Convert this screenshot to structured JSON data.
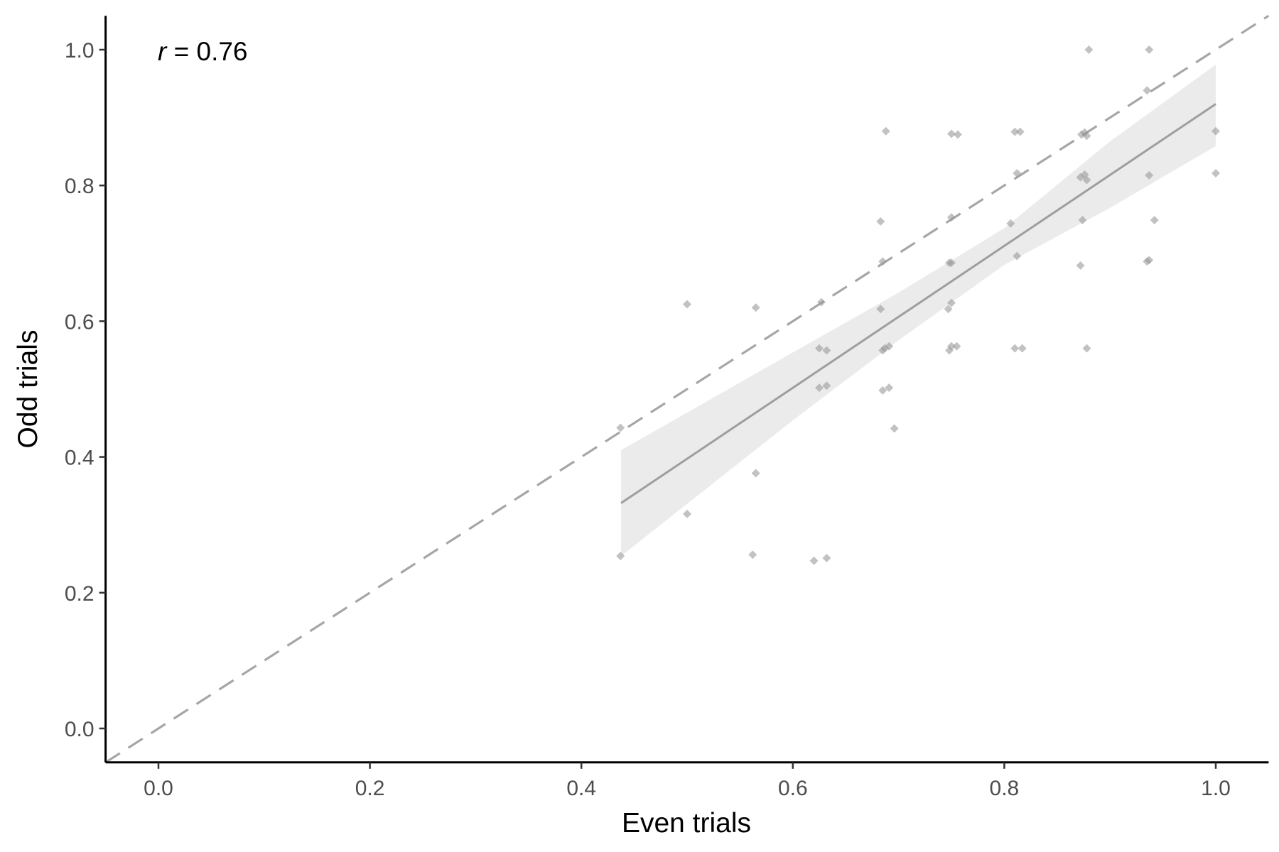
{
  "chart_data": {
    "type": "scatter",
    "xlabel": "Even trials",
    "ylabel": "Odd trials",
    "xlim": [
      -0.05,
      1.05
    ],
    "ylim": [
      -0.05,
      1.05
    ],
    "x_ticks": [
      "0.0",
      "0.2",
      "0.4",
      "0.6",
      "0.8",
      "1.0"
    ],
    "y_ticks": [
      "0.0",
      "0.2",
      "0.4",
      "0.6",
      "0.8",
      "1.0"
    ],
    "annotation": {
      "label": "r",
      "text": " = 0.76",
      "value": 0.76
    },
    "grid": false,
    "reference_line": {
      "slope": 1,
      "intercept": 0,
      "style": "dashed"
    },
    "regression": {
      "x_range": [
        0.4375,
        1.0
      ],
      "y_range": [
        0.332,
        0.92
      ],
      "band": [
        {
          "x": 0.4375,
          "lo": 0.254,
          "hi": 0.41
        },
        {
          "x": 0.6,
          "lo": 0.454,
          "hi": 0.554
        },
        {
          "x": 0.7,
          "lo": 0.572,
          "hi": 0.642
        },
        {
          "x": 0.8,
          "lo": 0.683,
          "hi": 0.737
        },
        {
          "x": 0.9,
          "lo": 0.767,
          "hi": 0.865
        },
        {
          "x": 1.0,
          "lo": 0.858,
          "hi": 0.978
        }
      ]
    },
    "points": [
      {
        "x": 0.437,
        "y": 0.443
      },
      {
        "x": 0.437,
        "y": 0.254
      },
      {
        "x": 0.5,
        "y": 0.625
      },
      {
        "x": 0.5,
        "y": 0.316
      },
      {
        "x": 0.565,
        "y": 0.62
      },
      {
        "x": 0.565,
        "y": 0.376
      },
      {
        "x": 0.562,
        "y": 0.256
      },
      {
        "x": 0.62,
        "y": 0.247
      },
      {
        "x": 0.632,
        "y": 0.251
      },
      {
        "x": 0.627,
        "y": 0.628
      },
      {
        "x": 0.625,
        "y": 0.56
      },
      {
        "x": 0.632,
        "y": 0.557
      },
      {
        "x": 0.625,
        "y": 0.502
      },
      {
        "x": 0.632,
        "y": 0.505
      },
      {
        "x": 0.683,
        "y": 0.747
      },
      {
        "x": 0.685,
        "y": 0.688
      },
      {
        "x": 0.683,
        "y": 0.618
      },
      {
        "x": 0.687,
        "y": 0.56
      },
      {
        "x": 0.685,
        "y": 0.557
      },
      {
        "x": 0.691,
        "y": 0.563
      },
      {
        "x": 0.685,
        "y": 0.498
      },
      {
        "x": 0.691,
        "y": 0.502
      },
      {
        "x": 0.696,
        "y": 0.442
      },
      {
        "x": 0.688,
        "y": 0.88
      },
      {
        "x": 0.75,
        "y": 0.876
      },
      {
        "x": 0.756,
        "y": 0.875
      },
      {
        "x": 0.75,
        "y": 0.753
      },
      {
        "x": 0.75,
        "y": 0.686
      },
      {
        "x": 0.748,
        "y": 0.686
      },
      {
        "x": 0.747,
        "y": 0.618
      },
      {
        "x": 0.75,
        "y": 0.627
      },
      {
        "x": 0.75,
        "y": 0.563
      },
      {
        "x": 0.748,
        "y": 0.557
      },
      {
        "x": 0.755,
        "y": 0.563
      },
      {
        "x": 0.81,
        "y": 0.879
      },
      {
        "x": 0.815,
        "y": 0.879
      },
      {
        "x": 0.812,
        "y": 0.818
      },
      {
        "x": 0.806,
        "y": 0.744
      },
      {
        "x": 0.812,
        "y": 0.696
      },
      {
        "x": 0.81,
        "y": 0.56
      },
      {
        "x": 0.817,
        "y": 0.56
      },
      {
        "x": 0.873,
        "y": 0.875
      },
      {
        "x": 0.876,
        "y": 0.878
      },
      {
        "x": 0.872,
        "y": 0.812
      },
      {
        "x": 0.876,
        "y": 0.816
      },
      {
        "x": 0.878,
        "y": 0.808
      },
      {
        "x": 0.874,
        "y": 0.749
      },
      {
        "x": 0.872,
        "y": 0.682
      },
      {
        "x": 0.878,
        "y": 0.56
      },
      {
        "x": 0.88,
        "y": 1.0
      },
      {
        "x": 0.878,
        "y": 0.873
      },
      {
        "x": 0.937,
        "y": 1.0
      },
      {
        "x": 0.935,
        "y": 0.94
      },
      {
        "x": 0.937,
        "y": 0.815
      },
      {
        "x": 0.942,
        "y": 0.749
      },
      {
        "x": 0.935,
        "y": 0.688
      },
      {
        "x": 0.937,
        "y": 0.69
      },
      {
        "x": 1.0,
        "y": 0.88
      },
      {
        "x": 1.0,
        "y": 0.818
      }
    ],
    "colors": {
      "points": "#999999",
      "fit_line": "#9e9e9e",
      "band": "#ebebeb",
      "reference_line": "#a6a6a6",
      "axis": "#000000"
    }
  }
}
